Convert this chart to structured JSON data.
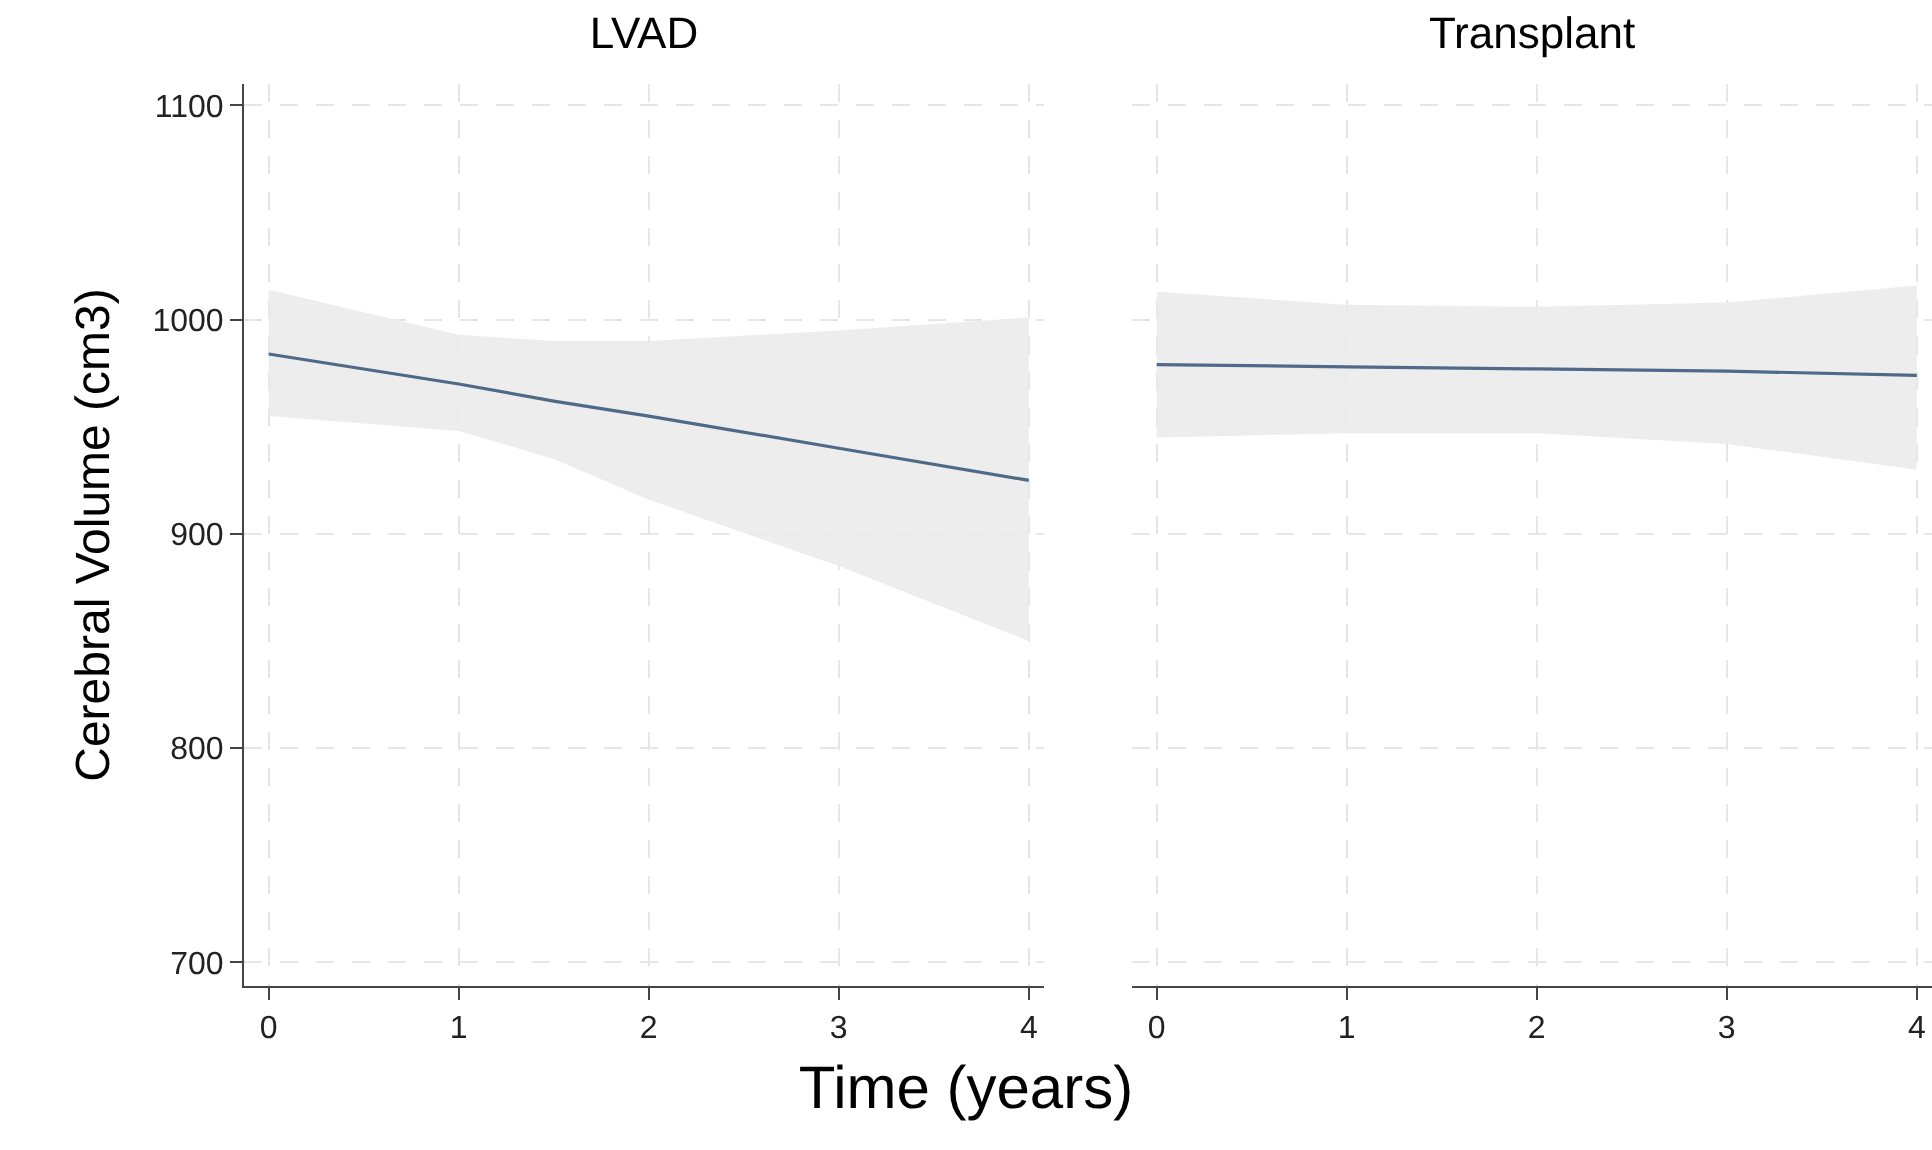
{
  "chart_data": [
    {
      "type": "line",
      "title": "LVAD",
      "xlabel": "Time (years)",
      "ylabel": "Cerebral Volume (cm3)",
      "x": [
        0,
        1,
        1.5,
        2,
        3,
        4
      ],
      "series": [
        {
          "color": "#4e6a88",
          "values": [
            984,
            970,
            962,
            955,
            940,
            925
          ],
          "lower": [
            955,
            948,
            935,
            916,
            885,
            850
          ],
          "upper": [
            1014,
            993,
            990,
            990,
            995,
            1001
          ]
        }
      ],
      "xlim": [
        -0.13,
        4.08
      ],
      "ylim": [
        689,
        1110
      ],
      "xticks": [
        0,
        1,
        2,
        3,
        4
      ],
      "yticks": [
        700,
        800,
        900,
        1000,
        1100
      ],
      "grid": true
    },
    {
      "type": "line",
      "title": "Transplant",
      "x": [
        0,
        1,
        2,
        3,
        4
      ],
      "series": [
        {
          "color": "#4e6a88",
          "values": [
            979,
            978,
            977,
            976,
            974
          ],
          "lower": [
            945,
            947,
            947,
            942,
            930
          ],
          "upper": [
            1013,
            1007,
            1006,
            1008,
            1016
          ]
        }
      ],
      "xlim": [
        -0.13,
        4.08
      ],
      "ylim": [
        689,
        1110
      ],
      "xticks": [
        0,
        1,
        2,
        3,
        4
      ],
      "yticks": [
        700,
        800,
        900,
        1000,
        1100
      ],
      "grid": true,
      "tick_labels": "x"
    }
  ]
}
